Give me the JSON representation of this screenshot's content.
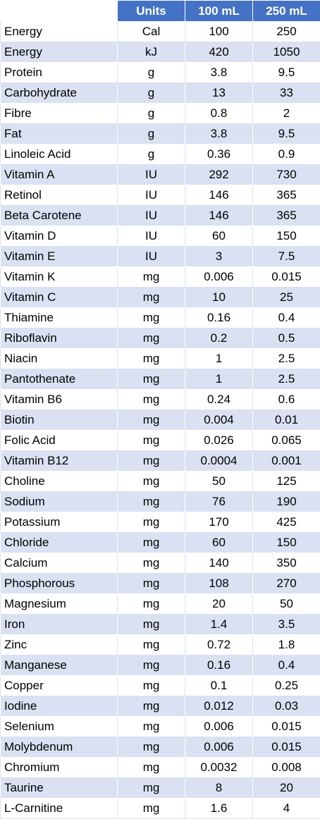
{
  "header": {
    "name": "",
    "units": "Units",
    "v100": "100 mL",
    "v250": "250 mL"
  },
  "rows": [
    {
      "name": "Energy",
      "unit": "Cal",
      "v100": "100",
      "v250": "250"
    },
    {
      "name": "Energy",
      "unit": "kJ",
      "v100": "420",
      "v250": "1050"
    },
    {
      "name": "Protein",
      "unit": "g",
      "v100": "3.8",
      "v250": "9.5"
    },
    {
      "name": "Carbohydrate",
      "unit": "g",
      "v100": "13",
      "v250": "33"
    },
    {
      "name": "Fibre",
      "unit": "g",
      "v100": "0.8",
      "v250": "2"
    },
    {
      "name": "Fat",
      "unit": "g",
      "v100": "3.8",
      "v250": "9.5"
    },
    {
      "name": "Linoleic Acid",
      "unit": "g",
      "v100": "0.36",
      "v250": "0.9"
    },
    {
      "name": "Vitamin A",
      "unit": "IU",
      "v100": "292",
      "v250": "730"
    },
    {
      "name": "Retinol",
      "unit": "IU",
      "v100": "146",
      "v250": "365"
    },
    {
      "name": "Beta Carotene",
      "unit": "IU",
      "v100": "146",
      "v250": "365"
    },
    {
      "name": "Vitamin D",
      "unit": "IU",
      "v100": "60",
      "v250": "150"
    },
    {
      "name": "Vitamin E",
      "unit": "IU",
      "v100": "3",
      "v250": "7.5"
    },
    {
      "name": "Vitamin K",
      "unit": "mg",
      "v100": "0.006",
      "v250": "0.015"
    },
    {
      "name": "Vitamin C",
      "unit": "mg",
      "v100": "10",
      "v250": "25"
    },
    {
      "name": "Thiamine",
      "unit": "mg",
      "v100": "0.16",
      "v250": "0.4"
    },
    {
      "name": "Riboflavin",
      "unit": "mg",
      "v100": "0.2",
      "v250": "0.5"
    },
    {
      "name": "Niacin",
      "unit": "mg",
      "v100": "1",
      "v250": "2.5"
    },
    {
      "name": "Pantothenate",
      "unit": "mg",
      "v100": "1",
      "v250": "2.5"
    },
    {
      "name": "Vitamin B6",
      "unit": "mg",
      "v100": "0.24",
      "v250": "0.6"
    },
    {
      "name": "Biotin",
      "unit": "mg",
      "v100": "0.004",
      "v250": "0.01"
    },
    {
      "name": "Folic Acid",
      "unit": "mg",
      "v100": "0.026",
      "v250": "0.065"
    },
    {
      "name": "Vitamin B12",
      "unit": "mg",
      "v100": "0.0004",
      "v250": "0.001"
    },
    {
      "name": "Choline",
      "unit": "mg",
      "v100": "50",
      "v250": "125"
    },
    {
      "name": "Sodium",
      "unit": "mg",
      "v100": "76",
      "v250": "190"
    },
    {
      "name": "Potassium",
      "unit": "mg",
      "v100": "170",
      "v250": "425"
    },
    {
      "name": "Chloride",
      "unit": "mg",
      "v100": "60",
      "v250": "150"
    },
    {
      "name": "Calcium",
      "unit": "mg",
      "v100": "140",
      "v250": "350"
    },
    {
      "name": "Phosphorous",
      "unit": "mg",
      "v100": "108",
      "v250": "270"
    },
    {
      "name": "Magnesium",
      "unit": "mg",
      "v100": "20",
      "v250": "50"
    },
    {
      "name": "Iron",
      "unit": "mg",
      "v100": "1.4",
      "v250": "3.5"
    },
    {
      "name": "Zinc",
      "unit": "mg",
      "v100": "0.72",
      "v250": "1.8"
    },
    {
      "name": "Manganese",
      "unit": "mg",
      "v100": "0.16",
      "v250": "0.4"
    },
    {
      "name": "Copper",
      "unit": "mg",
      "v100": "0.1",
      "v250": "0.25"
    },
    {
      "name": "Iodine",
      "unit": "mg",
      "v100": "0.012",
      "v250": "0.03"
    },
    {
      "name": "Selenium",
      "unit": "mg",
      "v100": "0.006",
      "v250": "0.015"
    },
    {
      "name": "Molybdenum",
      "unit": "mg",
      "v100": "0.006",
      "v250": "0.015"
    },
    {
      "name": "Chromium",
      "unit": "mg",
      "v100": "0.0032",
      "v250": "0.008"
    },
    {
      "name": "Taurine",
      "unit": "mg",
      "v100": "8",
      "v250": "20"
    },
    {
      "name": "L-Carnitine",
      "unit": "mg",
      "v100": "1.6",
      "v250": "4"
    }
  ],
  "colors": {
    "header_bg": "#4472c4",
    "header_text": "#ffffff",
    "band_bg": "#d9e1f2",
    "row_bg": "#ffffff"
  }
}
